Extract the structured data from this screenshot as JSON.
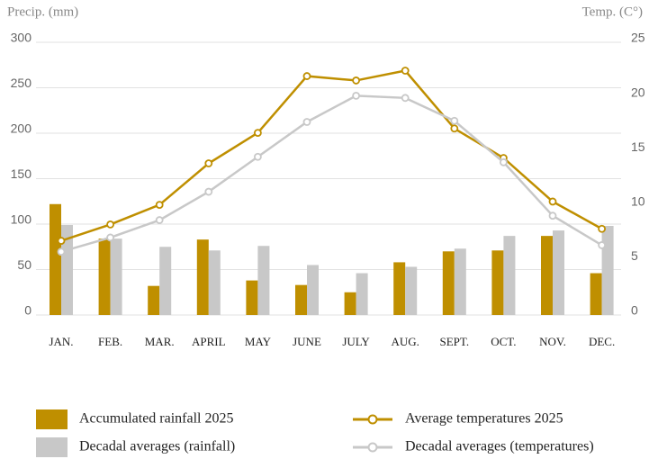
{
  "chart_data": {
    "type": "bar",
    "y_label": "Precip. (mm)",
    "y2_label": "Temp. (C°)",
    "categories": [
      "JAN.",
      "FEB.",
      "MAR.",
      "APRIL",
      "MAY",
      "JUNE",
      "JULY",
      "AUG.",
      "SEPT.",
      "OCT.",
      "NOV.",
      "DEC."
    ],
    "ylim": [
      0,
      300
    ],
    "yticks": [
      0,
      50,
      100,
      150,
      200,
      250,
      300
    ],
    "y2lim": [
      0,
      25
    ],
    "y2ticks": [
      0,
      5,
      10,
      15,
      20,
      25
    ],
    "grid": true,
    "series": [
      {
        "name": "Accumulated rainfall 2025",
        "type": "bar",
        "color": "#bf8f00",
        "values": [
          122,
          84,
          32,
          83,
          38,
          33,
          25,
          58,
          70,
          71,
          87,
          46
        ]
      },
      {
        "name": "Decadal averages (rainfall)",
        "type": "bar",
        "color": "#c8c8c8",
        "values": [
          99,
          84,
          75,
          71,
          76,
          55,
          46,
          53,
          73,
          87,
          93,
          98
        ]
      },
      {
        "name": "Average temperatures 2025",
        "type": "line",
        "axis": "y2",
        "color": "#bf8f00",
        "values": [
          6.8,
          8.3,
          10.1,
          13.9,
          16.7,
          21.9,
          21.5,
          22.4,
          17.1,
          14.4,
          10.4,
          7.9
        ]
      },
      {
        "name": "Decadal averages (temperatures)",
        "type": "line",
        "axis": "y2",
        "color": "#c8c8c8",
        "values": [
          5.8,
          7.1,
          8.7,
          11.3,
          14.5,
          17.7,
          20.1,
          19.9,
          17.8,
          14.0,
          9.1,
          6.4
        ]
      }
    ]
  }
}
